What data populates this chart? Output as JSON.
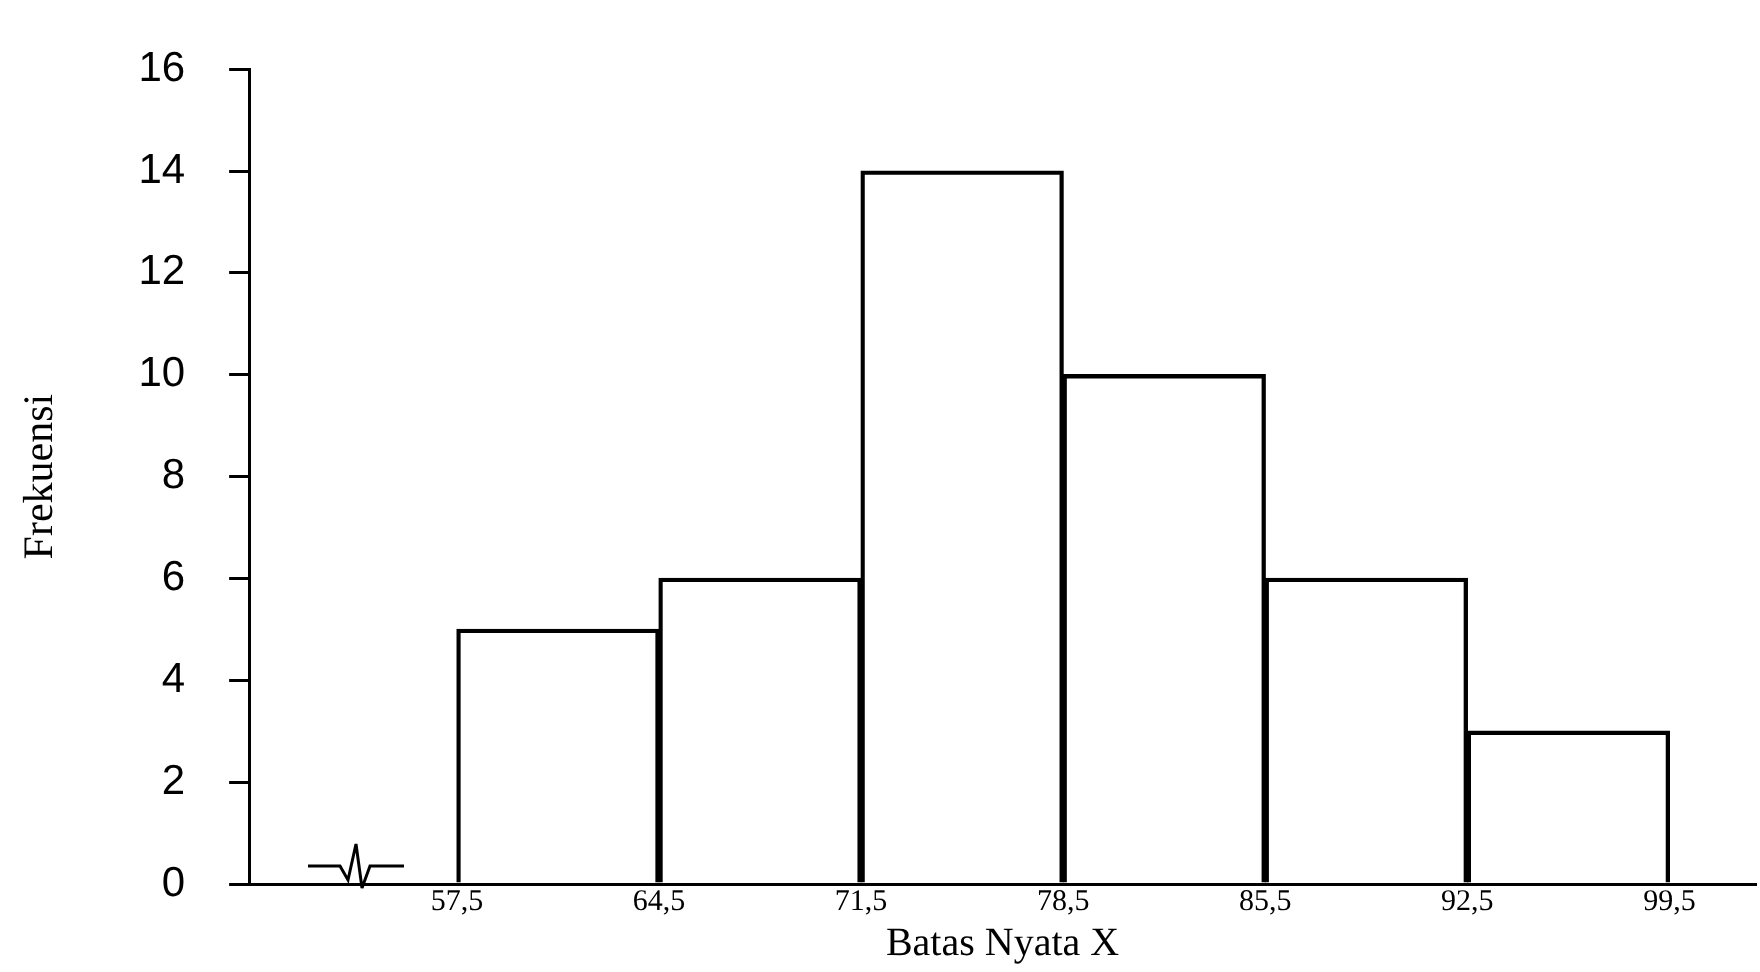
{
  "chart_data": {
    "type": "histogram",
    "xlabel": "Batas Nyata X",
    "ylabel": "Frekuensi",
    "bins": [
      57.5,
      64.5,
      71.5,
      78.5,
      85.5,
      92.5,
      99.5
    ],
    "values": [
      5,
      6,
      14,
      10,
      6,
      3
    ],
    "color": "#000000",
    "xlim": [
      50.3,
      102.5
    ],
    "xticks": [
      {
        "value": 57.5,
        "label": "57,5"
      },
      {
        "value": 64.5,
        "label": "64,5"
      },
      {
        "value": 71.5,
        "label": "71,5"
      },
      {
        "value": 78.5,
        "label": "78,5"
      },
      {
        "value": 85.5,
        "label": "85,5"
      },
      {
        "value": 92.5,
        "label": "92,5"
      },
      {
        "value": 99.5,
        "label": "99,5"
      }
    ],
    "ylim": [
      0,
      16
    ],
    "yticks": [
      0,
      2,
      4,
      6,
      8,
      10,
      12,
      14,
      16
    ],
    "grid": false,
    "legend": false
  }
}
